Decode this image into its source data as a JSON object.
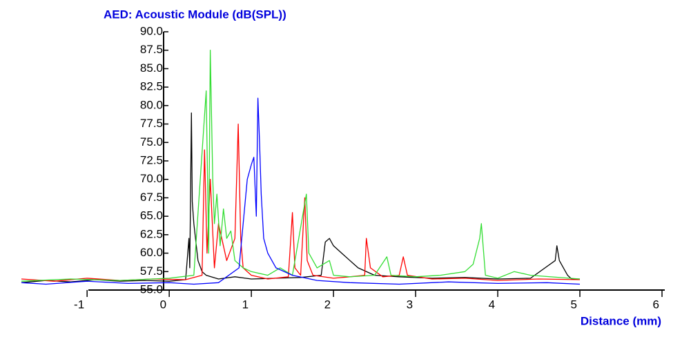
{
  "chart_data": {
    "type": "line",
    "title": "AED: Acoustic Module (dB(SPL))",
    "xlabel": "Distance (mm)",
    "xlim": [
      -1.8,
      6
    ],
    "xticks": [
      -1,
      0,
      1,
      2,
      3,
      4,
      5,
      6
    ],
    "ylim": [
      55,
      90
    ],
    "yticks": [
      {
        "value": 55,
        "label": "55.0"
      },
      {
        "value": 57.5,
        "label": "57.5"
      },
      {
        "value": 60,
        "label": "60.0"
      },
      {
        "value": 62.5,
        "label": "62.5"
      },
      {
        "value": 65,
        "label": "65.0"
      },
      {
        "value": 67.5,
        "label": "67.5"
      },
      {
        "value": 70,
        "label": "70.0"
      },
      {
        "value": 72.5,
        "label": "72.5"
      },
      {
        "value": 75,
        "label": "75.0"
      },
      {
        "value": 77.5,
        "label": "77.5"
      },
      {
        "value": 80,
        "label": "80.0"
      },
      {
        "value": 82.5,
        "label": "82.5"
      },
      {
        "value": 85,
        "label": "85.0"
      },
      {
        "value": 87.5,
        "label": "87.5"
      },
      {
        "value": 90,
        "label": "90.0"
      }
    ],
    "grid": false,
    "series": [
      {
        "color": "#000000",
        "x": [
          -1.8,
          -1.5,
          -1.2,
          -0.9,
          -0.6,
          -0.3,
          0,
          0.2,
          0.24,
          0.25,
          0.27,
          0.28,
          0.3,
          0.35,
          0.4,
          0.45,
          0.6,
          0.8,
          1.0,
          1.3,
          1.6,
          1.85,
          1.9,
          1.95,
          2.0,
          2.1,
          2.2,
          2.3,
          2.5,
          2.8,
          3.2,
          3.6,
          4.0,
          4.4,
          4.7,
          4.72,
          4.75,
          4.8,
          4.85,
          4.9,
          5.0
        ],
        "values": [
          56.0,
          56.3,
          56.1,
          56.4,
          56.2,
          56.3,
          56.2,
          56.4,
          62,
          58,
          79,
          67,
          64,
          59,
          57.5,
          57,
          56.5,
          56.8,
          56.5,
          56.6,
          56.7,
          57,
          61.5,
          62,
          61,
          60,
          59,
          58,
          57,
          56.8,
          56.6,
          56.7,
          56.5,
          56.6,
          59,
          61,
          59,
          58,
          57,
          56.5,
          56.5
        ]
      },
      {
        "color": "#ff0000",
        "x": [
          -1.8,
          -1.4,
          -1.0,
          -0.6,
          -0.2,
          0.2,
          0.4,
          0.43,
          0.46,
          0.5,
          0.55,
          0.6,
          0.7,
          0.8,
          0.84,
          0.87,
          0.9,
          1.0,
          1.2,
          1.45,
          1.5,
          1.53,
          1.6,
          1.65,
          1.68,
          1.75,
          2.0,
          2.2,
          2.38,
          2.4,
          2.45,
          2.6,
          2.8,
          2.85,
          2.9,
          3.2,
          3.6,
          4.0,
          4.5,
          5.0
        ],
        "values": [
          56.5,
          56.2,
          56.6,
          56.3,
          56.5,
          56.4,
          57,
          74,
          60,
          70,
          58,
          64,
          59,
          62,
          77.5,
          62,
          58,
          57,
          56.5,
          56.8,
          65.5,
          58,
          57,
          67.5,
          59,
          57,
          56.6,
          56.8,
          57,
          62,
          58,
          56.8,
          57,
          59.5,
          57,
          56.5,
          56.6,
          56.3,
          56.5,
          56.4
        ]
      },
      {
        "color": "#33dd33",
        "x": [
          -1.8,
          -1.2,
          -0.6,
          0,
          0.3,
          0.45,
          0.48,
          0.5,
          0.53,
          0.55,
          0.58,
          0.62,
          0.66,
          0.7,
          0.75,
          0.8,
          0.9,
          1.0,
          1.2,
          1.35,
          1.5,
          1.67,
          1.7,
          1.8,
          1.95,
          2.0,
          2.2,
          2.5,
          2.65,
          2.7,
          3.0,
          3.3,
          3.6,
          3.7,
          3.78,
          3.8,
          3.85,
          4.0,
          4.2,
          4.4,
          5.0
        ],
        "values": [
          56.2,
          56.5,
          56.3,
          56.6,
          57,
          82,
          60,
          87.5,
          70,
          64,
          68,
          61,
          66,
          62,
          63,
          59,
          58,
          57.5,
          57,
          58,
          57,
          68,
          60,
          58,
          59,
          57,
          56.8,
          57,
          59.5,
          57,
          56.8,
          57,
          57.5,
          58.5,
          62,
          64,
          57,
          56.6,
          57.5,
          57,
          56.5
        ]
      },
      {
        "color": "#0000ff",
        "x": [
          -1.8,
          -1.5,
          -1.0,
          -0.5,
          0,
          0.3,
          0.6,
          0.85,
          0.95,
          1.0,
          1.03,
          1.06,
          1.08,
          1.1,
          1.12,
          1.15,
          1.2,
          1.3,
          1.5,
          1.8,
          2.2,
          2.8,
          3.4,
          4.0,
          4.6,
          5.0
        ],
        "values": [
          56,
          55.8,
          56.2,
          55.9,
          56,
          55.8,
          56,
          58,
          70,
          72,
          73,
          65,
          81,
          75,
          68,
          62,
          60,
          58,
          57,
          56.3,
          56,
          55.8,
          56.1,
          55.9,
          56,
          55.8
        ]
      }
    ]
  }
}
